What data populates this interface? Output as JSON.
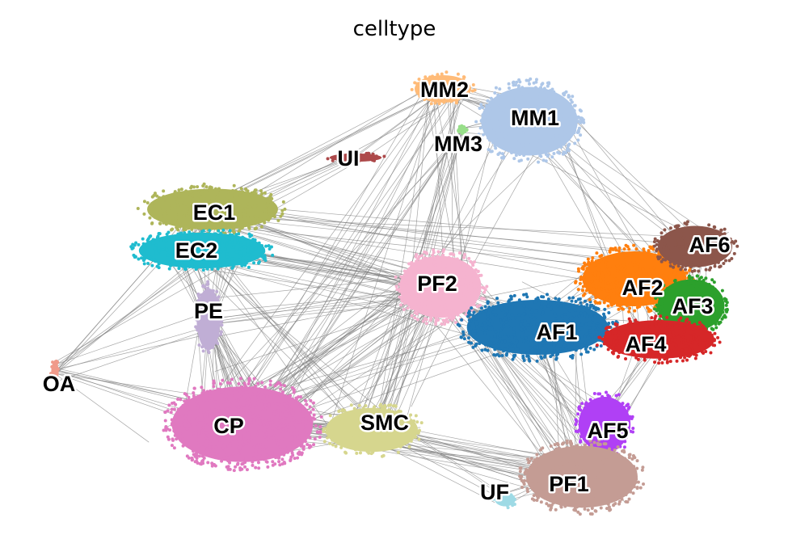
{
  "chart_data": {
    "type": "scatter",
    "title": "celltype",
    "xlabel": "",
    "ylabel": "",
    "grid": false,
    "legend": "on data",
    "edge_color": "#808080",
    "series": [
      {
        "name": "EC1",
        "color": "#aeb55a",
        "cx": 263,
        "cy": 259,
        "rx": 88,
        "ry": 30
      },
      {
        "name": "EC2",
        "color": "#1fbccf",
        "cx": 250,
        "cy": 310,
        "rx": 85,
        "ry": 26
      },
      {
        "name": "PE",
        "color": "#c0aed5",
        "cx": 258,
        "cy": 395,
        "rx": 16,
        "ry": 45
      },
      {
        "name": "OA",
        "color": "#f09a8a",
        "cx": 68,
        "cy": 460,
        "rx": 5,
        "ry": 15
      },
      {
        "name": "CP",
        "color": "#e079c0",
        "cx": 300,
        "cy": 525,
        "rx": 95,
        "ry": 55
      },
      {
        "name": "SMC",
        "color": "#d6d68e",
        "cx": 460,
        "cy": 532,
        "rx": 62,
        "ry": 32
      },
      {
        "name": "PF2",
        "color": "#f5b3cf",
        "cx": 545,
        "cy": 355,
        "rx": 55,
        "ry": 45
      },
      {
        "name": "AF1",
        "color": "#1f77b4",
        "cx": 665,
        "cy": 405,
        "rx": 95,
        "ry": 40
      },
      {
        "name": "AF2",
        "color": "#ff7f0e",
        "cx": 785,
        "cy": 345,
        "rx": 70,
        "ry": 40
      },
      {
        "name": "AF3",
        "color": "#2ca02c",
        "cx": 855,
        "cy": 378,
        "rx": 45,
        "ry": 38
      },
      {
        "name": "AF4",
        "color": "#d62728",
        "cx": 815,
        "cy": 420,
        "rx": 75,
        "ry": 28
      },
      {
        "name": "AF5",
        "color": "#b040f5",
        "cx": 748,
        "cy": 525,
        "rx": 35,
        "ry": 40
      },
      {
        "name": "AF6",
        "color": "#8c564b",
        "cx": 860,
        "cy": 305,
        "rx": 50,
        "ry": 30
      },
      {
        "name": "PF1",
        "color": "#c49c94",
        "cx": 720,
        "cy": 590,
        "rx": 75,
        "ry": 45
      },
      {
        "name": "UF",
        "color": "#9edae5",
        "cx": 625,
        "cy": 618,
        "rx": 14,
        "ry": 10
      },
      {
        "name": "MM2",
        "color": "#ffbb78",
        "cx": 548,
        "cy": 110,
        "rx": 38,
        "ry": 20
      },
      {
        "name": "MM1",
        "color": "#aec7e8",
        "cx": 655,
        "cy": 150,
        "rx": 65,
        "ry": 50
      },
      {
        "name": "MM3",
        "color": "#98df8a",
        "cx": 572,
        "cy": 160,
        "rx": 6,
        "ry": 5
      },
      {
        "name": "UI",
        "color": "#ad494a",
        "cx": 440,
        "cy": 195,
        "rx": 35,
        "ry": 6
      }
    ],
    "labels": [
      {
        "text": "EC1",
        "x": 265,
        "y": 262
      },
      {
        "text": "EC2",
        "x": 243,
        "y": 309
      },
      {
        "text": "PE",
        "x": 258,
        "y": 384
      },
      {
        "text": "OA",
        "x": 73,
        "y": 474
      },
      {
        "text": "CP",
        "x": 283,
        "y": 526
      },
      {
        "text": "SMC",
        "x": 476,
        "y": 522
      },
      {
        "text": "PF2",
        "x": 541,
        "y": 350
      },
      {
        "text": "AF1",
        "x": 689,
        "y": 410
      },
      {
        "text": "AF2",
        "x": 795,
        "y": 355
      },
      {
        "text": "AF3",
        "x": 857,
        "y": 378
      },
      {
        "text": "AF4",
        "x": 799,
        "y": 425
      },
      {
        "text": "AF5",
        "x": 752,
        "y": 532
      },
      {
        "text": "AF6",
        "x": 878,
        "y": 302
      },
      {
        "text": "PF1",
        "x": 704,
        "y": 598
      },
      {
        "text": "UF",
        "x": 612,
        "y": 608
      },
      {
        "text": "MM2",
        "x": 550,
        "y": 110
      },
      {
        "text": "MM1",
        "x": 662,
        "y": 145
      },
      {
        "text": "MM3",
        "x": 567,
        "y": 177
      },
      {
        "text": "UI",
        "x": 431,
        "y": 195
      }
    ],
    "edges": [
      [
        "EC1",
        "EC2",
        30
      ],
      [
        "EC2",
        "PE",
        20
      ],
      [
        "PE",
        "CP",
        30
      ],
      [
        "OA",
        "CP",
        8
      ],
      [
        "OA",
        "EC2",
        8
      ],
      [
        "OA",
        "PE",
        4
      ],
      [
        "CP",
        "SMC",
        20
      ],
      [
        "CP",
        "PF2",
        25
      ],
      [
        "SMC",
        "PF2",
        15
      ],
      [
        "EC1",
        "PF2",
        10
      ],
      [
        "EC2",
        "PF2",
        12
      ],
      [
        "EC1",
        "MM2",
        6
      ],
      [
        "EC1",
        "UI",
        6
      ],
      [
        "UI",
        "MM2",
        3
      ],
      [
        "PF2",
        "AF1",
        20
      ],
      [
        "AF1",
        "AF2",
        15
      ],
      [
        "AF2",
        "AF3",
        10
      ],
      [
        "AF2",
        "AF4",
        10
      ],
      [
        "AF1",
        "AF4",
        12
      ],
      [
        "AF2",
        "AF6",
        10
      ],
      [
        "AF3",
        "AF6",
        8
      ],
      [
        "AF1",
        "PF1",
        12
      ],
      [
        "AF5",
        "PF1",
        15
      ],
      [
        "AF4",
        "AF5",
        8
      ],
      [
        "PF2",
        "PF1",
        15
      ],
      [
        "SMC",
        "PF1",
        12
      ],
      [
        "CP",
        "PF1",
        10
      ],
      [
        "UF",
        "PF1",
        5
      ],
      [
        "UF",
        "SMC",
        4
      ],
      [
        "MM1",
        "MM2",
        12
      ],
      [
        "MM3",
        "MM1",
        4
      ],
      [
        "MM1",
        "AF2",
        8
      ],
      [
        "MM1",
        "AF6",
        6
      ],
      [
        "MM2",
        "CP",
        10
      ],
      [
        "MM2",
        "PF2",
        8
      ],
      [
        "MM1",
        "PF2",
        6
      ],
      [
        "MM3",
        "CP",
        6
      ],
      [
        "MM3",
        "SMC",
        6
      ],
      [
        "EC1",
        "AF2",
        6
      ],
      [
        "EC2",
        "AF1",
        6
      ],
      [
        "EC1",
        "AF6",
        4
      ],
      [
        "PE",
        "PF2",
        8
      ],
      [
        "CP",
        "AF1",
        6
      ],
      [
        "MM2",
        "SMC",
        5
      ],
      [
        "PF2",
        "AF5",
        6
      ],
      [
        "EC2",
        "SMC",
        8
      ]
    ]
  }
}
